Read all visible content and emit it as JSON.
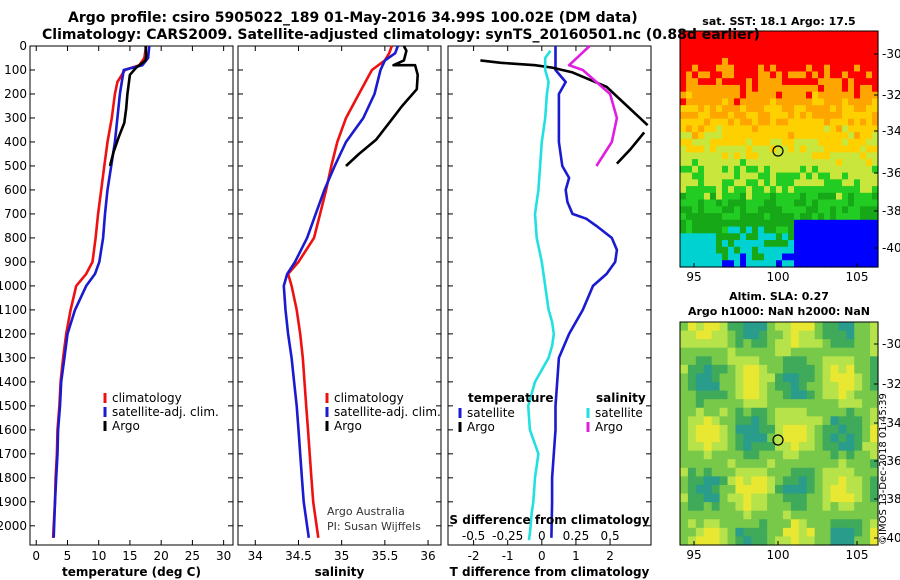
{
  "header": {
    "title_line1": "Argo profile: csiro 5905022_189 01-May-2016 34.99S 100.02E (DM data)",
    "title_line2": "Climatology: CARS2009. Satellite-adjusted climatology: synTS_20160501.nc (0.88d earlier)"
  },
  "sst_map": {
    "title": "sat. SST: 18.1 Argo: 17.5",
    "yticks": [
      "-30",
      "-32",
      "-34",
      "-36",
      "-38",
      "-40"
    ],
    "xticks": [
      "95",
      "100",
      "105"
    ]
  },
  "sla_map": {
    "title_line1": "Altim. SLA: 0.27",
    "title_line2": "Argo h1000: NaN h2000: NaN",
    "yticks": [
      "-30",
      "-32",
      "-34",
      "-36",
      "-38",
      "-40"
    ],
    "xticks": [
      "95",
      "100",
      "105"
    ]
  },
  "stamp": "©IMOS 13-Dec-2018 01:45:39",
  "colors": {
    "climatology": "#ee1111",
    "satellite": "#1a1ad0",
    "argo": "#000000",
    "s_satellite": "#22e0e0",
    "s_argo": "#e01ee0"
  },
  "chart_data": [
    {
      "type": "line",
      "panel": "temperature",
      "xlabel": "temperature (deg C)",
      "ylabel": "",
      "xlim": [
        -1,
        31.5
      ],
      "ylim": [
        2080,
        0
      ],
      "xticks": [
        0,
        5,
        10,
        15,
        20,
        25,
        30
      ],
      "yticks": [
        0,
        100,
        200,
        300,
        400,
        500,
        600,
        700,
        800,
        900,
        1000,
        1100,
        1200,
        1300,
        1400,
        1500,
        1600,
        1700,
        1800,
        1900,
        2000
      ],
      "legend": [
        "climatology",
        "satellite-adj. clim.",
        "Argo"
      ],
      "series": [
        {
          "name": "climatology",
          "x": [
            17.6,
            17.3,
            16.5,
            14.2,
            13.0,
            12.6,
            12.1,
            11.4,
            10.9,
            10.4,
            9.9,
            9.5,
            9.0,
            8.0,
            6.4,
            5.5,
            4.8,
            4.3,
            3.9,
            3.7,
            3.4,
            3.3,
            3.1,
            3.0,
            2.8,
            2.7
          ],
          "y": [
            0,
            50,
            80,
            100,
            150,
            200,
            300,
            400,
            500,
            600,
            700,
            800,
            900,
            950,
            1000,
            1100,
            1200,
            1300,
            1400,
            1500,
            1600,
            1700,
            1800,
            1900,
            2000,
            2050
          ]
        },
        {
          "name": "satellite-adj. clim.",
          "x": [
            18.1,
            17.9,
            17.0,
            14.0,
            13.4,
            13.0,
            12.6,
            12.0,
            11.4,
            11.0,
            10.7,
            10.4,
            10.1,
            9.4,
            8.0,
            6.2,
            5.0,
            4.5,
            4.0,
            3.8,
            3.5,
            3.4,
            3.2,
            3.0,
            2.8
          ],
          "y": [
            0,
            50,
            80,
            100,
            200,
            300,
            400,
            500,
            600,
            700,
            800,
            850,
            900,
            950,
            1000,
            1100,
            1200,
            1300,
            1400,
            1500,
            1600,
            1700,
            1800,
            1900,
            2050
          ]
        },
        {
          "name": "Argo",
          "x": [
            17.5,
            17.6,
            17.5,
            16.0,
            15.0,
            14.6,
            14.4,
            14.1,
            13.2,
            12.4,
            11.8
          ],
          "y": [
            0,
            40,
            60,
            90,
            120,
            200,
            260,
            320,
            380,
            440,
            500
          ]
        }
      ]
    },
    {
      "type": "line",
      "panel": "salinity",
      "xlabel": "salinity",
      "legend": [
        "climatology",
        "satellite-adj. clim.",
        "Argo"
      ],
      "xlim": [
        33.8,
        36.15
      ],
      "ylim": [
        2080,
        0
      ],
      "xticks": [
        34,
        34.5,
        35,
        35.5,
        36
      ],
      "annotation": [
        "Argo Australia",
        "PI: Susan Wijffels"
      ],
      "series": [
        {
          "name": "climatology",
          "x": [
            35.58,
            35.55,
            35.5,
            35.35,
            35.2,
            35.05,
            34.95,
            34.88,
            34.82,
            34.75,
            34.68,
            34.5,
            34.38,
            34.42,
            34.48,
            34.52,
            34.55,
            34.57,
            34.59,
            34.61,
            34.63,
            34.65,
            34.67,
            34.69,
            34.71,
            34.73
          ],
          "y": [
            0,
            30,
            60,
            100,
            200,
            300,
            400,
            500,
            600,
            700,
            800,
            900,
            950,
            1000,
            1100,
            1200,
            1300,
            1400,
            1500,
            1600,
            1700,
            1800,
            1900,
            1950,
            2000,
            2050
          ]
        },
        {
          "name": "satellite-adj. clim.",
          "x": [
            35.65,
            35.62,
            35.5,
            35.45,
            35.38,
            35.25,
            35.05,
            34.92,
            34.8,
            34.7,
            34.6,
            34.46,
            34.37,
            34.33,
            34.35,
            34.38,
            34.42,
            34.45,
            34.48,
            34.5,
            34.52,
            34.54,
            34.56,
            34.58,
            34.6,
            34.62
          ],
          "y": [
            0,
            30,
            60,
            100,
            200,
            300,
            400,
            500,
            600,
            700,
            800,
            900,
            950,
            1000,
            1100,
            1200,
            1300,
            1400,
            1500,
            1600,
            1700,
            1800,
            1900,
            1950,
            2000,
            2050
          ]
        },
        {
          "name": "Argo",
          "x": [
            35.72,
            35.75,
            35.72,
            35.6,
            35.85,
            35.88,
            35.87,
            35.7,
            35.55,
            35.4,
            35.2,
            35.05
          ],
          "y": [
            0,
            20,
            60,
            80,
            80,
            120,
            180,
            250,
            320,
            390,
            450,
            500
          ]
        }
      ]
    },
    {
      "type": "line",
      "panel": "difference",
      "xlabel": "T difference from climatology",
      "xlabel_top": "S difference from climatology",
      "xlim": [
        -2.75,
        3.2
      ],
      "ylim": [
        2080,
        0
      ],
      "xticks": [
        -2,
        -1,
        0,
        1,
        2
      ],
      "xtick_labels_s": [
        "-0.5",
        "-0.25",
        "0",
        "0.25",
        "0.5"
      ],
      "xtick_pos_s": [
        -2,
        -1,
        0,
        1,
        2
      ],
      "legend_temperature_title": "temperature",
      "legend_salinity_title": "salinity",
      "legend": [
        "satellite",
        "Argo",
        "satellite",
        "Argo"
      ],
      "series": [
        {
          "name": "satellite",
          "variable": "temperature",
          "x": [
            0.4,
            0.4,
            0.4,
            0.7,
            0.5,
            0.5,
            0.5,
            0.6,
            0.8,
            0.7,
            0.75,
            0.9,
            1.3,
            1.6,
            2.05,
            2.2,
            2.15,
            1.9,
            1.5,
            1.2,
            0.8,
            0.5,
            0.45,
            0.4,
            0.4,
            0.35,
            0.3,
            0.3,
            0.28
          ],
          "y": [
            0,
            50,
            100,
            150,
            200,
            300,
            400,
            500,
            550,
            600,
            650,
            700,
            720,
            750,
            800,
            850,
            900,
            950,
            1000,
            1100,
            1200,
            1300,
            1400,
            1500,
            1600,
            1700,
            1800,
            1900,
            2050
          ]
        },
        {
          "name": "Argo",
          "variable": "temperature",
          "x": [
            -1.8,
            -1.2,
            -0.2,
            0.3,
            0.9,
            1.9,
            2.5,
            3.1
          ],
          "y": [
            60,
            70,
            80,
            90,
            110,
            170,
            250,
            330
          ]
        },
        {
          "name": "Argo",
          "variable": "temperature",
          "x": [
            2.2,
            2.6,
            3.0
          ],
          "y": [
            490,
            430,
            360
          ]
        },
        {
          "name": "satellite",
          "variable": "salinity",
          "x": [
            0.25,
            0.1,
            0.1,
            0.2,
            0.15,
            0.1,
            0.0,
            -0.05,
            -0.1,
            -0.2,
            -0.15,
            0.0,
            0.1,
            0.2,
            0.3,
            0.35,
            0.3,
            0.2,
            0.0,
            -0.2,
            -0.3,
            -0.4,
            -0.35,
            -0.1,
            -0.2,
            -0.25,
            -0.3,
            -0.33,
            -0.35,
            -0.38
          ],
          "y": [
            20,
            50,
            100,
            150,
            200,
            300,
            400,
            500,
            600,
            700,
            800,
            900,
            1000,
            1100,
            1150,
            1200,
            1250,
            1300,
            1350,
            1400,
            1450,
            1500,
            1600,
            1700,
            1800,
            1900,
            1950,
            2000,
            2030,
            2060
          ]
        },
        {
          "name": "Argo",
          "variable": "salinity",
          "x": [
            1.4,
            1.1,
            0.8,
            1.2,
            1.6,
            2.0,
            2.2,
            2.05,
            1.6
          ],
          "y": [
            0,
            40,
            80,
            100,
            150,
            200,
            300,
            400,
            500
          ]
        }
      ]
    }
  ]
}
